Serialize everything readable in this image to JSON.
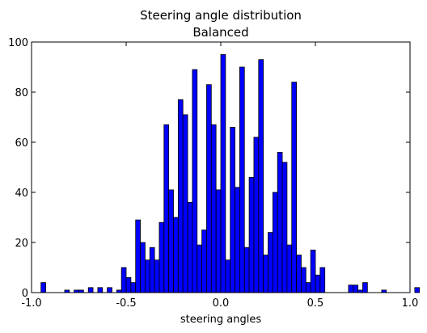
{
  "chart_data": {
    "type": "bar",
    "title": "Steering angle distribution",
    "subtitle": "Balanced",
    "xlabel": "steering angles",
    "ylabel": "",
    "xlim": [
      -1.0,
      1.0
    ],
    "ylim": [
      0,
      100
    ],
    "x_ticks": [
      "-1.0",
      "-0.5",
      "0.0",
      "0.5",
      "1.0"
    ],
    "y_ticks": [
      "0",
      "20",
      "40",
      "60",
      "80",
      "100"
    ],
    "grid": false,
    "bar_color": "#0000ff",
    "bins": {
      "start": -1.0,
      "width": 0.025,
      "counts": [
        0,
        0,
        4,
        0,
        0,
        0,
        0,
        1,
        0,
        1,
        1,
        0,
        2,
        0,
        2,
        0,
        2,
        0,
        1,
        10,
        6,
        4,
        29,
        20,
        13,
        18,
        13,
        28,
        67,
        41,
        30,
        77,
        71,
        36,
        89,
        19,
        25,
        83,
        67,
        41,
        95,
        13,
        66,
        42,
        90,
        18,
        46,
        62,
        93,
        15,
        24,
        40,
        56,
        52,
        19,
        84,
        15,
        10,
        4,
        17,
        7,
        10,
        0,
        0,
        0,
        0,
        0,
        3,
        3,
        1,
        4,
        0,
        0,
        0,
        1,
        0,
        0,
        0,
        0,
        0,
        0,
        2
      ]
    }
  }
}
